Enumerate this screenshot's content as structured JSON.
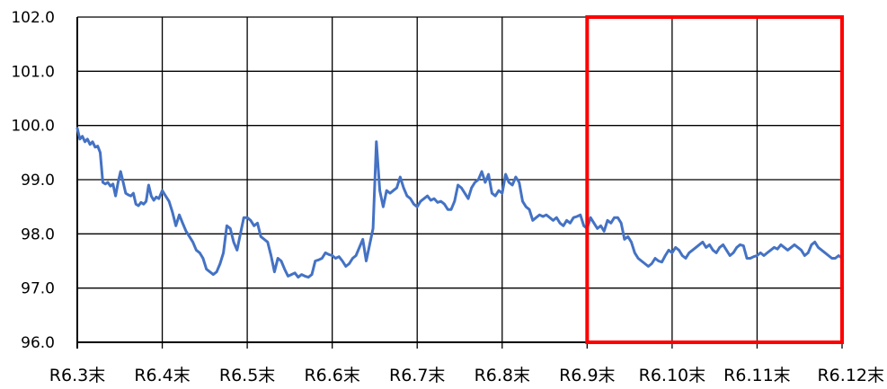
{
  "chart_data": {
    "type": "line",
    "title": "",
    "xlabel": "",
    "ylabel": "",
    "ylim": [
      96.0,
      102.0
    ],
    "yticks": [
      "96.0",
      "97.0",
      "98.0",
      "99.0",
      "100.0",
      "101.0",
      "102.0"
    ],
    "categories": [
      "R6.3末",
      "R6.4末",
      "R6.5末",
      "R6.6末",
      "R6.7末",
      "R6.8末",
      "R6.9末",
      "R6.10末",
      "R6.11末",
      "R6.12末"
    ],
    "grid": true,
    "series_color": "#4472C4",
    "highlight": {
      "from": "R6.9末",
      "to": "R6.12末",
      "color": "#FF0000"
    },
    "series": [
      {
        "x": [
          0.0,
          0.03,
          0.06,
          0.09,
          0.12,
          0.15,
          0.18,
          0.21,
          0.24,
          0.27,
          0.3,
          0.33,
          0.36,
          0.39,
          0.42,
          0.45,
          0.48,
          0.51,
          0.54,
          0.57,
          0.6,
          0.63,
          0.66,
          0.69,
          0.72,
          0.75,
          0.78,
          0.81,
          0.84,
          0.87,
          0.9,
          0.93,
          0.96,
          1.0,
          1.04,
          1.08,
          1.12,
          1.16,
          1.2,
          1.24,
          1.28,
          1.32,
          1.36,
          1.4,
          1.44,
          1.48,
          1.52,
          1.56,
          1.6,
          1.64,
          1.68,
          1.72,
          1.76,
          1.8,
          1.84,
          1.88,
          1.92,
          1.96,
          2.0,
          2.04,
          2.08,
          2.12,
          2.16,
          2.2,
          2.24,
          2.28,
          2.32,
          2.36,
          2.4,
          2.44,
          2.48,
          2.52,
          2.56,
          2.6,
          2.64,
          2.68,
          2.72,
          2.76,
          2.8,
          2.84,
          2.88,
          2.92,
          2.96,
          3.0,
          3.04,
          3.08,
          3.12,
          3.16,
          3.2,
          3.24,
          3.28,
          3.32,
          3.36,
          3.4,
          3.44,
          3.48,
          3.52,
          3.56,
          3.6,
          3.64,
          3.68,
          3.72,
          3.76,
          3.8,
          3.84,
          3.88,
          3.92,
          3.96,
          4.0,
          4.04,
          4.08,
          4.12,
          4.16,
          4.2,
          4.24,
          4.28,
          4.32,
          4.36,
          4.4,
          4.44,
          4.48,
          4.52,
          4.56,
          4.6,
          4.64,
          4.68,
          4.72,
          4.76,
          4.8,
          4.84,
          4.88,
          4.92,
          4.96,
          5.0,
          5.04,
          5.08,
          5.12,
          5.16,
          5.2,
          5.24,
          5.28,
          5.32,
          5.36,
          5.4,
          5.44,
          5.48,
          5.52,
          5.56,
          5.6,
          5.64,
          5.68,
          5.72,
          5.76,
          5.8,
          5.84,
          5.88,
          5.92,
          5.96,
          6.0,
          6.04,
          6.08,
          6.12,
          6.16,
          6.2,
          6.24,
          6.28,
          6.32,
          6.36,
          6.4,
          6.44,
          6.48,
          6.52,
          6.56,
          6.6,
          6.64,
          6.68,
          6.72,
          6.76,
          6.8,
          6.84,
          6.88,
          6.92,
          6.96,
          7.0,
          7.04,
          7.08,
          7.12,
          7.16,
          7.2,
          7.24,
          7.28,
          7.32,
          7.36,
          7.4,
          7.44,
          7.48,
          7.52,
          7.56,
          7.6,
          7.64,
          7.68,
          7.72,
          7.76,
          7.8,
          7.84,
          7.88,
          7.92,
          7.96,
          8.0,
          8.04,
          8.08,
          8.12,
          8.16,
          8.2,
          8.24,
          8.28,
          8.32,
          8.36,
          8.4,
          8.44,
          8.48,
          8.52,
          8.56,
          8.6,
          8.64,
          8.68,
          8.72,
          8.76,
          8.8,
          8.84,
          8.88,
          8.92,
          8.96,
          9.0
        ],
        "values": [
          99.95,
          99.75,
          99.8,
          99.7,
          99.75,
          99.65,
          99.7,
          99.6,
          99.62,
          99.5,
          98.95,
          98.92,
          98.95,
          98.88,
          98.92,
          98.7,
          98.95,
          99.15,
          98.95,
          98.75,
          98.72,
          98.7,
          98.75,
          98.55,
          98.52,
          98.58,
          98.55,
          98.6,
          98.9,
          98.7,
          98.62,
          98.68,
          98.65,
          98.8,
          98.7,
          98.6,
          98.4,
          98.15,
          98.35,
          98.2,
          98.05,
          97.95,
          97.85,
          97.7,
          97.65,
          97.55,
          97.35,
          97.3,
          97.25,
          97.3,
          97.45,
          97.65,
          98.15,
          98.1,
          97.85,
          97.7,
          98.0,
          98.3,
          98.3,
          98.25,
          98.15,
          98.2,
          97.95,
          97.9,
          97.85,
          97.6,
          97.3,
          97.55,
          97.5,
          97.35,
          97.22,
          97.25,
          97.28,
          97.2,
          97.25,
          97.22,
          97.2,
          97.25,
          97.5,
          97.52,
          97.55,
          97.65,
          97.62,
          97.6,
          97.55,
          97.58,
          97.5,
          97.4,
          97.45,
          97.55,
          97.6,
          97.75,
          97.9,
          97.5,
          97.8,
          98.1,
          99.7,
          98.8,
          98.5,
          98.8,
          98.75,
          98.8,
          98.85,
          99.05,
          98.85,
          98.7,
          98.65,
          98.55,
          98.5,
          98.6,
          98.65,
          98.7,
          98.62,
          98.65,
          98.58,
          98.6,
          98.55,
          98.45,
          98.45,
          98.6,
          98.9,
          98.85,
          98.75,
          98.65,
          98.85,
          98.95,
          99.0,
          99.15,
          98.95,
          99.1,
          98.75,
          98.7,
          98.8,
          98.75,
          99.1,
          98.95,
          98.9,
          99.05,
          98.95,
          98.6,
          98.5,
          98.45,
          98.25,
          98.3,
          98.35,
          98.32,
          98.35,
          98.3,
          98.25,
          98.3,
          98.2,
          98.15,
          98.25,
          98.2,
          98.3,
          98.32,
          98.35,
          98.15,
          98.1,
          98.3,
          98.2,
          98.1,
          98.15,
          98.05,
          98.25,
          98.2,
          98.3,
          98.3,
          98.2,
          97.9,
          97.95,
          97.85,
          97.65,
          97.55,
          97.5,
          97.45,
          97.4,
          97.45,
          97.55,
          97.5,
          97.48,
          97.6,
          97.7,
          97.65,
          97.75,
          97.7,
          97.6,
          97.55,
          97.65,
          97.7,
          97.75,
          97.8,
          97.85,
          97.75,
          97.8,
          97.7,
          97.65,
          97.75,
          97.8,
          97.7,
          97.6,
          97.65,
          97.75,
          97.8,
          97.78,
          97.55,
          97.55,
          97.58,
          97.6,
          97.65,
          97.6,
          97.65,
          97.7,
          97.75,
          97.72,
          97.8,
          97.75,
          97.7,
          97.75,
          97.8,
          97.75,
          97.7,
          97.6,
          97.65,
          97.8,
          97.85,
          97.75,
          97.7,
          97.65,
          97.6,
          97.55,
          97.55,
          97.6,
          97.55
        ]
      }
    ]
  }
}
